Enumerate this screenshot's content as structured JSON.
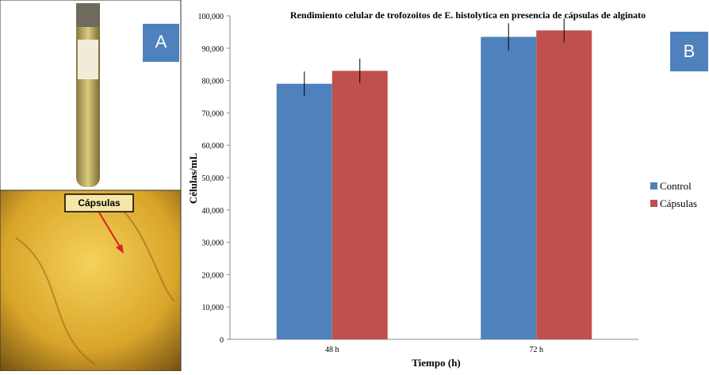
{
  "panel_a": {
    "label": "A",
    "annotation": "Cápsulas"
  },
  "panel_b": {
    "label": "B"
  },
  "chart_data": {
    "type": "bar",
    "title": "Rendimiento celular de trofozoitos de E. histolytica en presencia de cápsulas de alginato",
    "x_label": "Tiempo (h)",
    "y_label": "Células/mL",
    "categories": [
      "48 h",
      "72 h"
    ],
    "series": [
      {
        "name": "Control",
        "color": "#4f81bd",
        "values": [
          79000,
          93500
        ],
        "errors": [
          3800,
          4200
        ]
      },
      {
        "name": "Cápsulas",
        "color": "#c0504d",
        "values": [
          83000,
          95500
        ],
        "errors": [
          3800,
          3700
        ]
      }
    ],
    "ylim": [
      0,
      100000
    ],
    "yticks": [
      0,
      {
        "value": 10000,
        "label": "10,000"
      },
      {
        "value": 20000,
        "label": "20,000"
      },
      {
        "value": 30000,
        "label": "30,000"
      },
      {
        "value": 40000,
        "label": "40,000"
      },
      {
        "value": 50000,
        "label": "50,000"
      },
      {
        "value": 60000,
        "label": "60,000"
      },
      {
        "value": 70000,
        "label": "70,000"
      },
      {
        "value": 80000,
        "label": "80,000"
      },
      {
        "value": 90000,
        "label": "90,000"
      },
      {
        "value": 100000,
        "label": "100,000"
      }
    ],
    "legend": "right",
    "grid": false
  }
}
